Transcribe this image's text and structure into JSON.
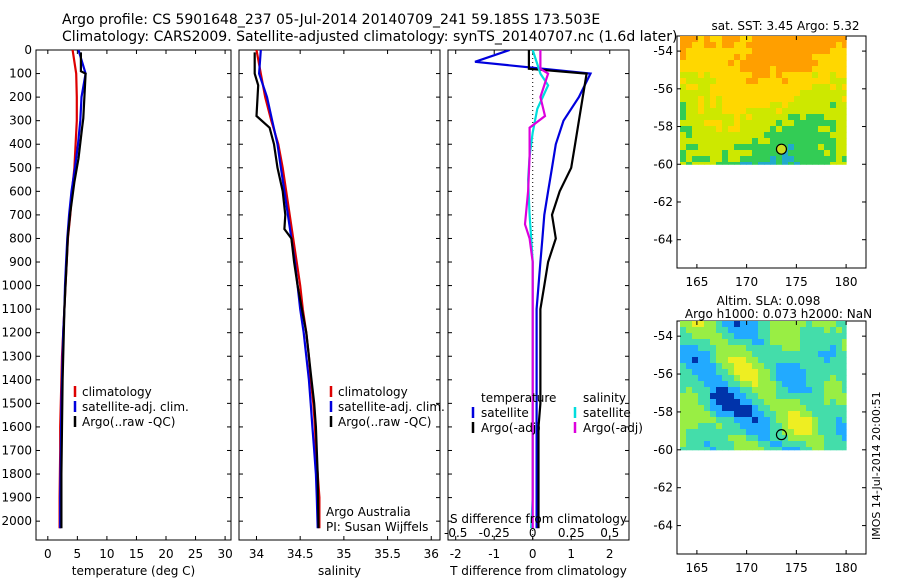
{
  "header": {
    "title_line1": "Argo profile: CS 5901648_237 05-Jul-2014 20140709_241 59.185S 173.503E",
    "title_line2": "Climatology: CARS2009. Satellite-adjusted climatology: synTS_20140707.nc (1.6d later)"
  },
  "footer": {
    "vertical_label": "IMOS 14-Jul-2014 20:00:51"
  },
  "colors": {
    "climatology": "#dd0000",
    "satellite": "#0000dd",
    "argo": "#000000",
    "sat_salinity": "#00dddd",
    "argo_salinity": "#dd00dd"
  },
  "chart_data": [
    {
      "type": "line",
      "id": "temperature",
      "xlabel": "temperature (deg C)",
      "ylabel": "",
      "xlim": [
        -2,
        31
      ],
      "ylim": [
        2080,
        0
      ],
      "xticks": [
        0,
        5,
        10,
        15,
        20,
        25,
        30
      ],
      "yticks": [
        0,
        100,
        200,
        300,
        400,
        500,
        600,
        700,
        800,
        900,
        1000,
        1100,
        1200,
        1300,
        1400,
        1500,
        1600,
        1700,
        1800,
        1900,
        2000
      ],
      "legend": [
        "climatology",
        "satellite-adj. clim.",
        "Argo(..raw -QC)"
      ],
      "series": [
        {
          "name": "climatology",
          "color": "#dd0000",
          "x": [
            4.2,
            4.8,
            4.9,
            4.9,
            4.7,
            4.5,
            4.1,
            3.8,
            3.4,
            3.2,
            3.0,
            2.8,
            2.6,
            2.4,
            2.3,
            2.2,
            2.1,
            2.1,
            2.05,
            2.0,
            2.0
          ],
          "depth": [
            0,
            100,
            200,
            300,
            400,
            500,
            600,
            700,
            800,
            900,
            1000,
            1100,
            1200,
            1300,
            1400,
            1500,
            1600,
            1700,
            1800,
            1900,
            2030
          ]
        },
        {
          "name": "satellite-adj. clim.",
          "color": "#0000dd",
          "x": [
            5.2,
            6.4,
            5.7,
            5.5,
            5.1,
            4.6,
            4.0,
            3.6,
            3.3,
            3.1,
            2.9,
            2.8,
            2.6,
            2.5,
            2.4,
            2.3,
            2.25,
            2.2,
            2.15,
            2.1,
            2.1
          ],
          "depth": [
            0,
            100,
            200,
            300,
            400,
            500,
            600,
            700,
            800,
            900,
            1000,
            1100,
            1200,
            1300,
            1400,
            1500,
            1600,
            1700,
            1800,
            1900,
            2030
          ]
        },
        {
          "name": "Argo(..raw -QC)",
          "color": "#000000",
          "x": [
            5.6,
            5.6,
            6.4,
            6.0,
            5.8,
            5.2,
            4.5,
            3.8,
            3.4,
            3.2,
            3.0,
            2.8,
            2.7,
            2.6,
            2.5,
            2.45,
            2.4,
            2.35,
            2.3,
            2.3,
            2.3
          ],
          "depth": [
            10,
            90,
            100,
            290,
            330,
            460,
            560,
            690,
            790,
            900,
            1000,
            1100,
            1200,
            1300,
            1400,
            1500,
            1600,
            1700,
            1800,
            1900,
            2030
          ]
        }
      ]
    },
    {
      "type": "line",
      "id": "salinity",
      "xlabel": "salinity",
      "ylabel": "",
      "xlim": [
        33.8,
        36.1
      ],
      "ylim": [
        2080,
        0
      ],
      "xticks": [
        34,
        34.5,
        35,
        35.5,
        36
      ],
      "xticklabels": [
        "34",
        "34.5",
        "35",
        "35.5",
        "36"
      ],
      "legend": [
        "climatology",
        "satellite-adj. clim.",
        "Argo(..raw -QC)"
      ],
      "annotation": [
        "Argo Australia",
        "PI: Susan Wijffels"
      ],
      "series": [
        {
          "name": "climatology",
          "color": "#dd0000",
          "x": [
            34.0,
            34.05,
            34.1,
            34.17,
            34.25,
            34.3,
            34.34,
            34.38,
            34.42,
            34.46,
            34.5,
            34.53,
            34.57,
            34.6,
            34.62,
            34.65,
            34.67,
            34.68,
            34.7,
            34.72,
            34.72
          ],
          "depth": [
            0,
            100,
            200,
            300,
            400,
            500,
            600,
            700,
            800,
            900,
            1000,
            1100,
            1200,
            1300,
            1400,
            1500,
            1600,
            1700,
            1800,
            1900,
            2030
          ]
        },
        {
          "name": "satellite-adj. clim.",
          "color": "#0000dd",
          "x": [
            34.05,
            34.03,
            34.12,
            34.18,
            34.24,
            34.28,
            34.32,
            34.36,
            34.4,
            34.44,
            34.47,
            34.5,
            34.54,
            34.57,
            34.6,
            34.62,
            34.64,
            34.66,
            34.68,
            34.69,
            34.7
          ],
          "depth": [
            0,
            100,
            200,
            300,
            400,
            500,
            600,
            700,
            800,
            900,
            1000,
            1100,
            1200,
            1300,
            1400,
            1500,
            1600,
            1700,
            1800,
            1900,
            2030
          ]
        },
        {
          "name": "Argo(..raw -QC)",
          "color": "#000000",
          "x": [
            33.98,
            33.98,
            34.02,
            34.0,
            34.15,
            34.2,
            34.24,
            34.3,
            34.33,
            34.32,
            34.4,
            34.43,
            34.47,
            34.52,
            34.57,
            34.6,
            34.63,
            34.66,
            34.68,
            34.7,
            34.71
          ],
          "depth": [
            10,
            100,
            150,
            280,
            330,
            400,
            500,
            600,
            700,
            760,
            800,
            900,
            1000,
            1100,
            1200,
            1300,
            1400,
            1500,
            1600,
            1800,
            2030
          ]
        }
      ]
    },
    {
      "type": "line",
      "id": "differences",
      "xlabel": "T difference from climatology",
      "top_axis_label": "S difference from climatology",
      "xlim": [
        -2.2,
        2.5
      ],
      "ylim": [
        2080,
        0
      ],
      "xticks": [
        -2,
        -1,
        0,
        1,
        2
      ],
      "top_xticks": [
        -0.5,
        -0.25,
        0,
        0.25,
        0.5
      ],
      "top_xticklabels": [
        "-0.5",
        "-0.25",
        "0",
        "0.25",
        "0.5"
      ],
      "top_xlim": [
        -0.55,
        0.625
      ],
      "legend_headers": [
        "temperature",
        "salinity"
      ],
      "legend": [
        "satellite",
        "Argo(-adj)",
        "satellite",
        "Argo(-adj)"
      ],
      "series": [
        {
          "name": "satellite",
          "axis": "T",
          "color": "#0000dd",
          "x": [
            -0.6,
            -1.5,
            1.5,
            1.2,
            0.8,
            0.6,
            0.5,
            0.4,
            0.3,
            0.25,
            0.2,
            0.15,
            0.1,
            0.1,
            0.1,
            0.1,
            0.1,
            0.1,
            0.1,
            0.1
          ],
          "depth": [
            0,
            50,
            100,
            200,
            300,
            400,
            500,
            600,
            700,
            800,
            900,
            1000,
            1100,
            1200,
            1300,
            1400,
            1500,
            1600,
            1800,
            2030
          ]
        },
        {
          "name": "Argo(-adj)",
          "axis": "T",
          "color": "#000000",
          "x": [
            -0.1,
            -0.1,
            1.4,
            1.2,
            1.1,
            1.0,
            0.7,
            0.5,
            0.6,
            0.4,
            0.3,
            0.2,
            0.2,
            0.2,
            0.2,
            0.2,
            0.15,
            0.15,
            0.15
          ],
          "depth": [
            0,
            80,
            100,
            300,
            400,
            500,
            600,
            700,
            800,
            900,
            1000,
            1100,
            1200,
            1300,
            1400,
            1500,
            1600,
            1800,
            2030
          ]
        },
        {
          "name": "satellite",
          "axis": "S",
          "color": "#00dddd",
          "x": [
            0.0,
            0.05,
            0.1,
            0.03,
            0.0,
            -0.02,
            -0.03,
            -0.02,
            -0.01,
            0.0,
            0.0,
            0.0,
            0.0,
            0.0,
            0.0,
            0.0,
            -0.01
          ],
          "depth": [
            0,
            100,
            150,
            250,
            350,
            450,
            550,
            700,
            800,
            900,
            1000,
            1200,
            1400,
            1600,
            1800,
            1900,
            2030
          ]
        },
        {
          "name": "Argo(-adj)",
          "axis": "S",
          "color": "#dd00dd",
          "x": [
            0.05,
            0.05,
            0.1,
            0.05,
            0.08,
            -0.02,
            -0.02,
            -0.03,
            -0.05,
            -0.02,
            0.0,
            0.0,
            0.0,
            0.0,
            0.0
          ],
          "depth": [
            0,
            80,
            100,
            200,
            280,
            330,
            450,
            600,
            740,
            800,
            900,
            1000,
            1200,
            1400,
            2030
          ]
        }
      ]
    },
    {
      "type": "heatmap",
      "id": "sst_map",
      "title": "sat. SST: 3.45 Argo: 5.32",
      "xlim": [
        163,
        182
      ],
      "ylim": [
        -65.5,
        -53.2
      ],
      "xticks": [
        165,
        170,
        175,
        180
      ],
      "yticks": [
        -54,
        -56,
        -58,
        -60,
        -62,
        -64
      ],
      "data_extent": {
        "lon": [
          163.3,
          180
        ],
        "lat": [
          -60,
          -53.2
        ]
      },
      "marker": {
        "lon": 173.5,
        "lat": -59.2
      },
      "colors": [
        "#ff9f00",
        "#ffd700",
        "#cde800",
        "#33cc55",
        "#22aacc"
      ]
    },
    {
      "type": "heatmap",
      "id": "sla_map",
      "title_line1": "Altim. SLA: 0.098",
      "title_line2": "Argo h1000: 0.073 h2000: NaN",
      "xlim": [
        163,
        182
      ],
      "ylim": [
        -65.5,
        -53.2
      ],
      "xticks": [
        165,
        170,
        175,
        180
      ],
      "yticks": [
        -54,
        -56,
        -58,
        -60,
        -62,
        -64
      ],
      "data_extent": {
        "lon": [
          163.3,
          180
        ],
        "lat": [
          -60,
          -53.2
        ]
      },
      "marker": {
        "lon": 173.5,
        "lat": -59.2
      },
      "colors": [
        "#0033aa",
        "#22aaff",
        "#44ddaa",
        "#99ee44",
        "#eeee22"
      ]
    }
  ]
}
